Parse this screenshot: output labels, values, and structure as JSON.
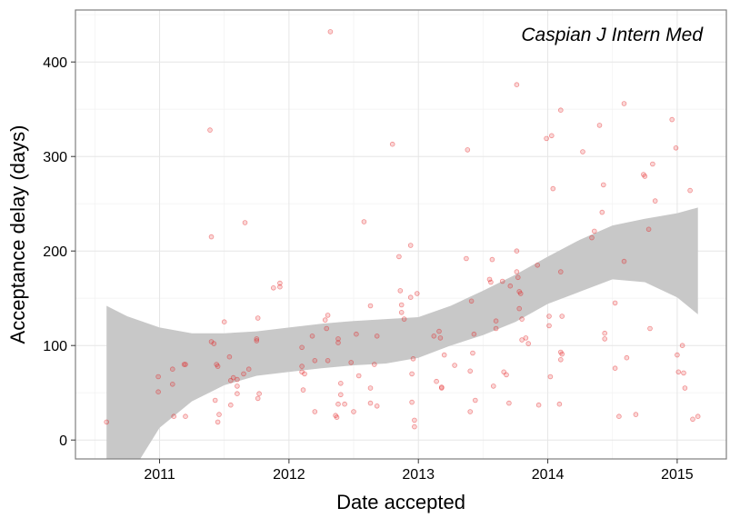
{
  "chart_data": {
    "type": "scatter",
    "annotation": "Caspian J Intern Med",
    "xlabel": "Date accepted",
    "ylabel": "Acceptance delay (days)",
    "x_unit": "year",
    "xlim": [
      2010.35,
      2015.38
    ],
    "ylim": [
      -20,
      455
    ],
    "x_ticks": [
      2011,
      2012,
      2013,
      2014,
      2015
    ],
    "x_tick_labels": [
      "2011",
      "2012",
      "2013",
      "2014",
      "2015"
    ],
    "y_ticks": [
      0,
      100,
      200,
      300,
      400
    ],
    "y_tick_labels": [
      "0",
      "100",
      "200",
      "300",
      "400"
    ],
    "grid": true,
    "point_color": "#e41a1c",
    "band_color": "#c8c8c8",
    "points": [
      [
        2010.59,
        19
      ],
      [
        2010.99,
        67
      ],
      [
        2010.99,
        51
      ],
      [
        2011.1,
        75
      ],
      [
        2011.1,
        59
      ],
      [
        2011.11,
        25
      ],
      [
        2011.19,
        80
      ],
      [
        2011.2,
        80
      ],
      [
        2011.2,
        25
      ],
      [
        2011.39,
        328
      ],
      [
        2011.4,
        215
      ],
      [
        2011.4,
        104
      ],
      [
        2011.42,
        102
      ],
      [
        2011.43,
        42
      ],
      [
        2011.44,
        80
      ],
      [
        2011.45,
        78
      ],
      [
        2011.45,
        19
      ],
      [
        2011.46,
        27
      ],
      [
        2011.5,
        125
      ],
      [
        2011.54,
        88
      ],
      [
        2011.55,
        63
      ],
      [
        2011.55,
        37
      ],
      [
        2011.57,
        66
      ],
      [
        2011.6,
        64
      ],
      [
        2011.6,
        57
      ],
      [
        2011.6,
        49
      ],
      [
        2011.65,
        70
      ],
      [
        2011.66,
        230
      ],
      [
        2011.69,
        75
      ],
      [
        2011.75,
        107
      ],
      [
        2011.75,
        105
      ],
      [
        2011.76,
        129
      ],
      [
        2011.76,
        44
      ],
      [
        2011.77,
        49
      ],
      [
        2011.88,
        161
      ],
      [
        2011.93,
        166
      ],
      [
        2011.93,
        162
      ],
      [
        2012.1,
        98
      ],
      [
        2012.1,
        78
      ],
      [
        2012.1,
        72
      ],
      [
        2012.11,
        53
      ],
      [
        2012.12,
        70
      ],
      [
        2012.18,
        110
      ],
      [
        2012.2,
        84
      ],
      [
        2012.2,
        30
      ],
      [
        2012.28,
        127
      ],
      [
        2012.29,
        118
      ],
      [
        2012.3,
        132
      ],
      [
        2012.3,
        84
      ],
      [
        2012.32,
        432
      ],
      [
        2012.36,
        26
      ],
      [
        2012.37,
        24
      ],
      [
        2012.38,
        107
      ],
      [
        2012.38,
        103
      ],
      [
        2012.38,
        38
      ],
      [
        2012.4,
        60
      ],
      [
        2012.4,
        48
      ],
      [
        2012.43,
        38
      ],
      [
        2012.48,
        82
      ],
      [
        2012.5,
        30
      ],
      [
        2012.52,
        112
      ],
      [
        2012.54,
        68
      ],
      [
        2012.58,
        231
      ],
      [
        2012.63,
        142
      ],
      [
        2012.63,
        55
      ],
      [
        2012.63,
        39
      ],
      [
        2012.66,
        80
      ],
      [
        2012.68,
        110
      ],
      [
        2012.68,
        36
      ],
      [
        2012.8,
        313
      ],
      [
        2012.85,
        194
      ],
      [
        2012.86,
        158
      ],
      [
        2012.87,
        143
      ],
      [
        2012.87,
        135
      ],
      [
        2012.89,
        128
      ],
      [
        2012.94,
        206
      ],
      [
        2012.94,
        151
      ],
      [
        2012.95,
        70
      ],
      [
        2012.95,
        40
      ],
      [
        2012.96,
        86
      ],
      [
        2012.97,
        21
      ],
      [
        2012.97,
        14
      ],
      [
        2012.99,
        155
      ],
      [
        2013.12,
        110
      ],
      [
        2013.14,
        62
      ],
      [
        2013.16,
        115
      ],
      [
        2013.17,
        108
      ],
      [
        2013.18,
        56
      ],
      [
        2013.18,
        55
      ],
      [
        2013.2,
        90
      ],
      [
        2013.28,
        79
      ],
      [
        2013.37,
        192
      ],
      [
        2013.38,
        307
      ],
      [
        2013.4,
        30
      ],
      [
        2013.4,
        73
      ],
      [
        2013.41,
        147
      ],
      [
        2013.42,
        92
      ],
      [
        2013.43,
        112
      ],
      [
        2013.44,
        42
      ],
      [
        2013.55,
        170
      ],
      [
        2013.56,
        167
      ],
      [
        2013.57,
        191
      ],
      [
        2013.58,
        57
      ],
      [
        2013.6,
        126
      ],
      [
        2013.6,
        118
      ],
      [
        2013.65,
        168
      ],
      [
        2013.66,
        72
      ],
      [
        2013.68,
        69
      ],
      [
        2013.7,
        39
      ],
      [
        2013.71,
        163
      ],
      [
        2013.76,
        200
      ],
      [
        2013.76,
        178
      ],
      [
        2013.76,
        376
      ],
      [
        2013.77,
        172
      ],
      [
        2013.78,
        139
      ],
      [
        2013.78,
        157
      ],
      [
        2013.79,
        155
      ],
      [
        2013.8,
        128
      ],
      [
        2013.8,
        106
      ],
      [
        2013.83,
        108
      ],
      [
        2013.85,
        102
      ],
      [
        2013.92,
        185
      ],
      [
        2013.93,
        37
      ],
      [
        2013.99,
        319
      ],
      [
        2014.01,
        121
      ],
      [
        2014.01,
        131
      ],
      [
        2014.02,
        67
      ],
      [
        2014.03,
        322
      ],
      [
        2014.04,
        266
      ],
      [
        2014.09,
        38
      ],
      [
        2014.1,
        349
      ],
      [
        2014.1,
        93
      ],
      [
        2014.1,
        178
      ],
      [
        2014.11,
        131
      ],
      [
        2014.11,
        91
      ],
      [
        2014.1,
        85
      ],
      [
        2014.27,
        305
      ],
      [
        2014.34,
        214
      ],
      [
        2014.36,
        221
      ],
      [
        2014.4,
        333
      ],
      [
        2014.42,
        241
      ],
      [
        2014.43,
        270
      ],
      [
        2014.44,
        113
      ],
      [
        2014.44,
        107
      ],
      [
        2014.52,
        145
      ],
      [
        2014.52,
        76
      ],
      [
        2014.55,
        25
      ],
      [
        2014.59,
        356
      ],
      [
        2014.59,
        189
      ],
      [
        2014.61,
        87
      ],
      [
        2014.68,
        27
      ],
      [
        2014.74,
        281
      ],
      [
        2014.75,
        279
      ],
      [
        2014.78,
        223
      ],
      [
        2014.79,
        118
      ],
      [
        2014.81,
        292
      ],
      [
        2014.83,
        253
      ],
      [
        2014.96,
        339
      ],
      [
        2014.99,
        309
      ],
      [
        2015.0,
        90
      ],
      [
        2015.01,
        72
      ],
      [
        2015.04,
        100
      ],
      [
        2015.05,
        71
      ],
      [
        2015.06,
        55
      ],
      [
        2015.1,
        264
      ],
      [
        2015.12,
        22
      ],
      [
        2015.16,
        25
      ]
    ],
    "band_upper": [
      [
        2010.59,
        142
      ],
      [
        2010.75,
        131
      ],
      [
        2011.0,
        119
      ],
      [
        2011.25,
        113
      ],
      [
        2011.5,
        113
      ],
      [
        2011.75,
        115
      ],
      [
        2012.0,
        119
      ],
      [
        2012.25,
        123
      ],
      [
        2012.5,
        126
      ],
      [
        2012.75,
        128
      ],
      [
        2013.0,
        130
      ],
      [
        2013.25,
        142
      ],
      [
        2013.5,
        158
      ],
      [
        2013.75,
        175
      ],
      [
        2014.0,
        194
      ],
      [
        2014.25,
        212
      ],
      [
        2014.5,
        227
      ],
      [
        2014.75,
        234
      ],
      [
        2015.0,
        240
      ],
      [
        2015.16,
        246
      ]
    ],
    "band_lower": [
      [
        2010.59,
        -20
      ],
      [
        2010.75,
        -20
      ],
      [
        2010.85,
        -20
      ],
      [
        2011.0,
        13
      ],
      [
        2011.25,
        41
      ],
      [
        2011.5,
        58
      ],
      [
        2011.75,
        68
      ],
      [
        2012.0,
        72
      ],
      [
        2012.25,
        76
      ],
      [
        2012.5,
        79
      ],
      [
        2012.75,
        81
      ],
      [
        2013.0,
        87
      ],
      [
        2013.25,
        100
      ],
      [
        2013.5,
        111
      ],
      [
        2013.75,
        125
      ],
      [
        2014.0,
        144
      ],
      [
        2014.25,
        157
      ],
      [
        2014.5,
        170
      ],
      [
        2014.75,
        167
      ],
      [
        2015.0,
        151
      ],
      [
        2015.16,
        133
      ]
    ]
  }
}
